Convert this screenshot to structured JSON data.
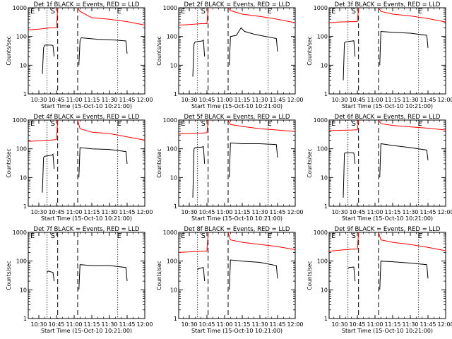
{
  "figure": {
    "xlabel": "Start Time (15-Oct-10 10:21:00)",
    "ylabel": "Counts/sec",
    "event_colors": {
      "events": "#000000",
      "lld": "#ff0000"
    },
    "x_ticks": [
      "10:30",
      "10:45",
      "11:00",
      "11:15",
      "11:30",
      "11:45",
      "12:00"
    ],
    "y_ticks": [
      "1",
      "10",
      "100",
      "1000"
    ],
    "markers": [
      "E",
      "S",
      "E"
    ]
  },
  "chart_data": [
    {
      "type": "line",
      "title": "Det 1f BLACK = Events, RED = LLD",
      "x_range": [
        "10:21",
        "12:00"
      ],
      "ylim": [
        1,
        1000
      ],
      "yscale": "log",
      "xlabel": "Start Time (15-Oct-10 10:21:00)",
      "ylabel": "Counts/sec",
      "dotted_lines": [
        "10:37",
        "11:37"
      ],
      "dashed_lines": [
        "10:46",
        "11:03"
      ],
      "series": [
        {
          "name": "Events",
          "color": "#000000",
          "segments": [
            {
              "x": [
                "10:33",
                "10:34",
                "10:35",
                "10:41",
                "10:42",
                "10:43"
              ],
              "y": [
                5,
                40,
                50,
                50,
                48,
                20
              ]
            },
            {
              "x": [
                "11:04",
                "11:05",
                "11:06",
                "11:20",
                "11:35",
                "11:44",
                "11:45"
              ],
              "y": [
                10,
                70,
                90,
                80,
                75,
                70,
                25
              ]
            }
          ]
        },
        {
          "name": "LLD",
          "color": "#ff0000",
          "segments": [
            {
              "x": [
                "10:21",
                "10:30",
                "10:40",
                "10:45"
              ],
              "y": [
                170,
                180,
                200,
                200
              ]
            },
            {
              "x": [
                "10:45",
                "10:46"
              ],
              "y": [
                200,
                1000
              ]
            },
            {
              "x": [
                "11:03",
                "11:05",
                "11:15",
                "11:30",
                "11:45",
                "12:00"
              ],
              "y": [
                1000,
                750,
                450,
                400,
                330,
                250
              ]
            }
          ]
        }
      ]
    },
    {
      "type": "line",
      "title": "Det 2f BLACK = Events, RED = LLD",
      "x_range": [
        "10:21",
        "12:00"
      ],
      "ylim": [
        1,
        1000
      ],
      "yscale": "log",
      "xlabel": "Start Time (15-Oct-10 10:21:00)",
      "ylabel": "Counts/sec",
      "dotted_lines": [
        "10:37",
        "11:37"
      ],
      "dashed_lines": [
        "10:46",
        "11:03"
      ],
      "series": [
        {
          "name": "Events",
          "color": "#000000",
          "segments": [
            {
              "x": [
                "10:33",
                "10:34",
                "10:35",
                "10:41",
                "10:42",
                "10:43"
              ],
              "y": [
                4,
                55,
                65,
                70,
                75,
                20
              ]
            },
            {
              "x": [
                "11:04",
                "11:05",
                "11:10",
                "11:14",
                "11:17",
                "11:25",
                "11:35",
                "11:44",
                "11:45"
              ],
              "y": [
                10,
                100,
                110,
                200,
                150,
                120,
                100,
                85,
                30
              ]
            }
          ]
        },
        {
          "name": "LLD",
          "color": "#ff0000",
          "segments": [
            {
              "x": [
                "10:21",
                "10:30",
                "10:40",
                "10:45"
              ],
              "y": [
                250,
                260,
                280,
                280
              ]
            },
            {
              "x": [
                "10:45",
                "10:46"
              ],
              "y": [
                280,
                1000
              ]
            },
            {
              "x": [
                "11:03",
                "11:05",
                "11:15",
                "11:30",
                "11:45",
                "12:00"
              ],
              "y": [
                1000,
                800,
                600,
                500,
                400,
                300
              ]
            }
          ]
        }
      ]
    },
    {
      "type": "line",
      "title": "Det 3f BLACK = Events, RED = LLD",
      "x_range": [
        "10:21",
        "12:00"
      ],
      "ylim": [
        1,
        1000
      ],
      "yscale": "log",
      "xlabel": "Start Time (15-Oct-10 10:21:00)",
      "ylabel": "Counts/sec",
      "dotted_lines": [
        "10:37",
        "11:37"
      ],
      "dashed_lines": [
        "10:46",
        "11:03"
      ],
      "series": [
        {
          "name": "Events",
          "color": "#000000",
          "segments": [
            {
              "x": [
                "10:33",
                "10:34",
                "10:35",
                "10:41",
                "10:42",
                "10:43"
              ],
              "y": [
                3,
                60,
                65,
                70,
                72,
                20
              ]
            },
            {
              "x": [
                "11:04",
                "11:05",
                "11:15",
                "11:30",
                "11:44",
                "11:45"
              ],
              "y": [
                10,
                150,
                140,
                130,
                110,
                40
              ]
            }
          ]
        },
        {
          "name": "LLD",
          "color": "#ff0000",
          "segments": [
            {
              "x": [
                "10:21",
                "10:30",
                "10:40",
                "10:45"
              ],
              "y": [
                300,
                320,
                330,
                330
              ]
            },
            {
              "x": [
                "10:45",
                "10:46"
              ],
              "y": [
                330,
                1000
              ]
            },
            {
              "x": [
                "11:03",
                "11:05",
                "11:15",
                "11:30",
                "11:45",
                "12:00"
              ],
              "y": [
                1000,
                750,
                600,
                520,
                420,
                320
              ]
            }
          ]
        }
      ]
    },
    {
      "type": "line",
      "title": "Det 4f BLACK = Events, RED = LLD",
      "x_range": [
        "10:21",
        "12:00"
      ],
      "ylim": [
        1,
        1000
      ],
      "yscale": "log",
      "xlabel": "Start Time (15-Oct-10 10:21:00)",
      "ylabel": "Counts/sec",
      "dotted_lines": [
        "10:37",
        "11:37"
      ],
      "dashed_lines": [
        "10:46",
        "11:03"
      ],
      "series": [
        {
          "name": "Events",
          "color": "#000000",
          "segments": [
            {
              "x": [
                "10:33",
                "10:34",
                "10:35",
                "10:41",
                "10:42",
                "10:43"
              ],
              "y": [
                3,
                50,
                55,
                60,
                65,
                20
              ]
            },
            {
              "x": [
                "11:04",
                "11:05",
                "11:15",
                "11:30",
                "11:44",
                "11:45"
              ],
              "y": [
                10,
                110,
                100,
                95,
                80,
                30
              ]
            }
          ]
        },
        {
          "name": "LLD",
          "color": "#ff0000",
          "segments": [
            {
              "x": [
                "10:21",
                "10:30",
                "10:40",
                "10:45"
              ],
              "y": [
                180,
                190,
                200,
                210
              ]
            },
            {
              "x": [
                "10:45",
                "10:46"
              ],
              "y": [
                210,
                1000
              ]
            },
            {
              "x": [
                "11:03",
                "11:05",
                "11:15",
                "11:30",
                "11:45",
                "12:00"
              ],
              "y": [
                1000,
                500,
                380,
                340,
                260,
                200
              ]
            }
          ]
        }
      ]
    },
    {
      "type": "line",
      "title": "Det 5f BLACK = Events, RED = LLD",
      "x_range": [
        "10:21",
        "12:00"
      ],
      "ylim": [
        1,
        1000
      ],
      "yscale": "log",
      "xlabel": "Start Time (15-Oct-10 10:21:00)",
      "ylabel": "Counts/sec",
      "dotted_lines": [
        "10:37",
        "11:37"
      ],
      "dashed_lines": [
        "10:46",
        "11:03"
      ],
      "series": [
        {
          "name": "Events",
          "color": "#000000",
          "segments": [
            {
              "x": [
                "10:33",
                "10:34",
                "10:35",
                "10:41",
                "10:42",
                "10:43"
              ],
              "y": [
                2,
                100,
                110,
                115,
                120,
                30
              ]
            },
            {
              "x": [
                "11:04",
                "11:05",
                "11:15",
                "11:30",
                "11:44",
                "11:45"
              ],
              "y": [
                10,
                160,
                150,
                150,
                140,
                50
              ]
            }
          ]
        },
        {
          "name": "LLD",
          "color": "#ff0000",
          "segments": [
            {
              "x": [
                "10:21",
                "10:30",
                "10:40",
                "10:45"
              ],
              "y": [
                330,
                340,
                350,
                360
              ]
            },
            {
              "x": [
                "10:45",
                "10:46"
              ],
              "y": [
                360,
                1000
              ]
            },
            {
              "x": [
                "11:03",
                "11:05",
                "11:15",
                "11:30",
                "11:45",
                "12:00"
              ],
              "y": [
                1000,
                700,
                600,
                500,
                450,
                400
              ]
            }
          ]
        }
      ]
    },
    {
      "type": "line",
      "title": "Det 6f BLACK = Events, RED = LLD",
      "x_range": [
        "10:21",
        "12:00"
      ],
      "ylim": [
        1,
        1000
      ],
      "yscale": "log",
      "xlabel": "Start Time (15-Oct-10 10:21:00)",
      "ylabel": "Counts/sec",
      "dotted_lines": [
        "10:37",
        "11:37"
      ],
      "dashed_lines": [
        "10:46",
        "11:03"
      ],
      "series": [
        {
          "name": "Events",
          "color": "#000000",
          "segments": [
            {
              "x": [
                "10:33",
                "10:34",
                "10:35",
                "10:41",
                "10:42",
                "10:43"
              ],
              "y": [
                2,
                70,
                72,
                72,
                72,
                30
              ]
            },
            {
              "x": [
                "11:04",
                "11:05",
                "11:15",
                "11:30",
                "11:44",
                "11:45"
              ],
              "y": [
                10,
                150,
                130,
                110,
                90,
                40
              ]
            }
          ]
        },
        {
          "name": "LLD",
          "color": "#ff0000",
          "segments": [
            {
              "x": [
                "10:21",
                "10:30",
                "10:40",
                "10:45"
              ],
              "y": [
                430,
                440,
                450,
                460
              ]
            },
            {
              "x": [
                "10:45",
                "10:46"
              ],
              "y": [
                460,
                1000
              ]
            },
            {
              "x": [
                "11:03",
                "11:05",
                "11:15",
                "11:30",
                "11:45",
                "12:00"
              ],
              "y": [
                1000,
                750,
                650,
                580,
                520,
                450
              ]
            }
          ]
        }
      ]
    },
    {
      "type": "line",
      "title": "Det 7f BLACK = Events, RED = LLD",
      "x_range": [
        "10:21",
        "12:00"
      ],
      "ylim": [
        1,
        1000
      ],
      "yscale": "log",
      "xlabel": "Start Time (15-Oct-10 10:21:00)",
      "ylabel": "Counts/sec",
      "dotted_lines": [
        "10:37",
        "11:37"
      ],
      "dashed_lines": [
        "10:46",
        "11:03"
      ],
      "series": [
        {
          "name": "Events",
          "color": "#000000",
          "segments": [
            {
              "x": [
                "10:37",
                "10:38",
                "10:42",
                "10:43"
              ],
              "y": [
                40,
                45,
                40,
                20
              ]
            },
            {
              "x": [
                "11:04",
                "11:05",
                "11:15",
                "11:30",
                "11:44",
                "11:45"
              ],
              "y": [
                10,
                75,
                70,
                70,
                60,
                20
              ]
            }
          ]
        }
      ]
    },
    {
      "type": "line",
      "title": "Det 8f BLACK = Events, RED = LLD",
      "x_range": [
        "10:21",
        "12:00"
      ],
      "ylim": [
        1,
        1000
      ],
      "yscale": "log",
      "xlabel": "Start Time (15-Oct-10 10:21:00)",
      "ylabel": "Counts/sec",
      "dotted_lines": [
        "10:37",
        "11:37"
      ],
      "dashed_lines": [
        "10:46",
        "11:03"
      ],
      "series": [
        {
          "name": "Events",
          "color": "#000000",
          "segments": [
            {
              "x": [
                "10:37",
                "10:38",
                "10:42",
                "10:43"
              ],
              "y": [
                50,
                55,
                60,
                20
              ]
            },
            {
              "x": [
                "11:04",
                "11:05",
                "11:15",
                "11:30",
                "11:44",
                "11:45"
              ],
              "y": [
                10,
                110,
                100,
                90,
                70,
                25
              ]
            }
          ]
        },
        {
          "name": "LLD",
          "color": "#ff0000",
          "segments": [
            {
              "x": [
                "10:21",
                "10:30",
                "10:40",
                "10:45"
              ],
              "y": [
                200,
                210,
                220,
                220
              ]
            },
            {
              "x": [
                "10:45",
                "10:46"
              ],
              "y": [
                220,
                1000
              ]
            },
            {
              "x": [
                "11:03",
                "11:05",
                "11:15",
                "11:30",
                "11:45",
                "12:00"
              ],
              "y": [
                1000,
                550,
                450,
                380,
                320,
                250
              ]
            }
          ]
        }
      ]
    },
    {
      "type": "line",
      "title": "Det 9f BLACK = Events, RED = LLD",
      "x_range": [
        "10:21",
        "12:00"
      ],
      "ylim": [
        1,
        1000
      ],
      "yscale": "log",
      "xlabel": "Start Time (15-Oct-10 10:21:00)",
      "ylabel": "Counts/sec",
      "dotted_lines": [
        "10:37",
        "11:37"
      ],
      "dashed_lines": [
        "10:46",
        "11:03"
      ],
      "series": [
        {
          "name": "Events",
          "color": "#000000",
          "segments": [
            {
              "x": [
                "10:37",
                "10:38",
                "10:42",
                "10:43"
              ],
              "y": [
                55,
                60,
                62,
                20
              ]
            },
            {
              "x": [
                "11:04",
                "11:05",
                "11:15",
                "11:30",
                "11:44",
                "11:45"
              ],
              "y": [
                10,
                100,
                95,
                85,
                75,
                25
              ]
            }
          ]
        },
        {
          "name": "LLD",
          "color": "#ff0000",
          "segments": [
            {
              "x": [
                "10:21",
                "10:30",
                "10:40",
                "10:45"
              ],
              "y": [
                220,
                240,
                260,
                260
              ]
            },
            {
              "x": [
                "10:45",
                "10:46"
              ],
              "y": [
                260,
                1000
              ]
            },
            {
              "x": [
                "11:03",
                "11:05",
                "11:15",
                "11:30",
                "11:45",
                "12:00"
              ],
              "y": [
                1000,
                550,
                450,
                380,
                300,
                230
              ]
            }
          ]
        }
      ]
    }
  ]
}
